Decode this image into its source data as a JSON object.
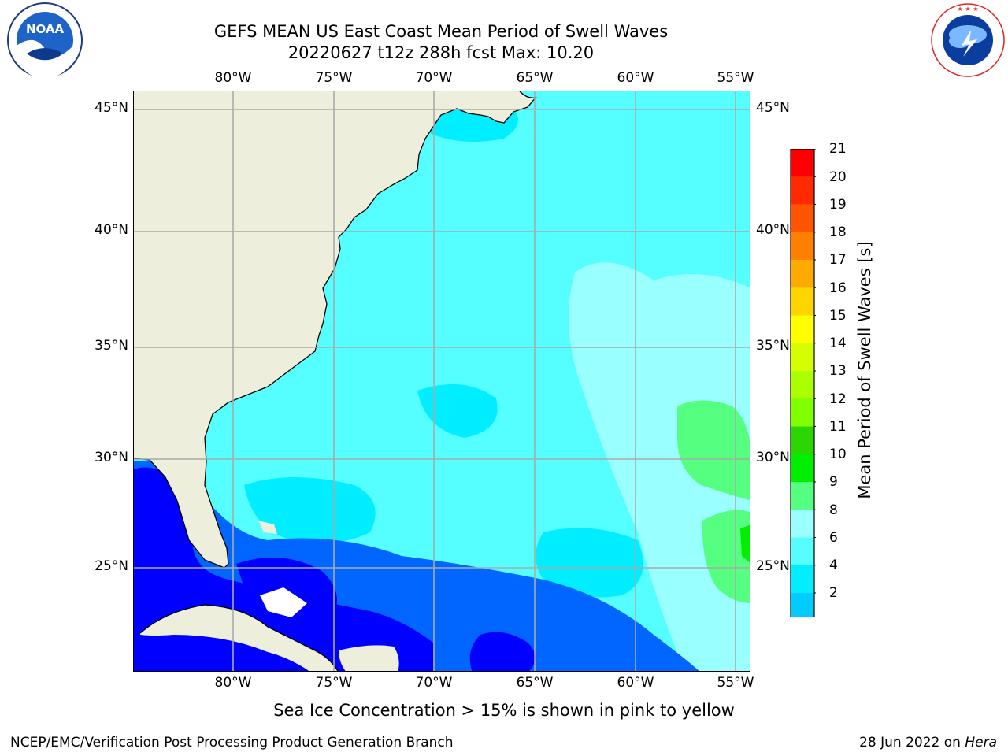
{
  "title_line1": "GEFS MEAN US East Coast Mean Period of Swell Waves",
  "title_line2": "20220627 t12z 288h fcst   Max: 10.20",
  "longitude_labels": [
    "80°W",
    "75°W",
    "70°W",
    "65°W",
    "60°W",
    "55°W"
  ],
  "latitude_labels": [
    "45°N",
    "40°N",
    "35°N",
    "30°N",
    "25°N"
  ],
  "colorbar": {
    "label": "Mean Period of Swell Waves [s]",
    "ticks": [
      "21",
      "20",
      "19",
      "18",
      "17",
      "16",
      "15",
      "14",
      "13",
      "12",
      "11",
      "10",
      "9",
      "8",
      "6",
      "4",
      "2"
    ],
    "colors": [
      "#ff0000",
      "#ff2a00",
      "#ff5500",
      "#ff8000",
      "#ffaa00",
      "#ffd500",
      "#ffff00",
      "#d5ff00",
      "#aaff00",
      "#80ff00",
      "#2ad500",
      "#00ee00",
      "#55ff80",
      "#99ffff",
      "#55ffff",
      "#00eeff",
      "#00ccff",
      "#0066ff"
    ],
    "under_color": "#0000ff"
  },
  "legend_levels": [
    {
      "level": "2-4 s",
      "color": "#0066ff"
    },
    {
      "level": "4-6 s",
      "color": "#00eeff"
    },
    {
      "level": "6-8 s",
      "color": "#55ffff"
    },
    {
      "level": "8-9 s",
      "color": "#99ffff"
    },
    {
      "level": "9-10 s",
      "color": "#55ff80"
    },
    {
      "level": "< 2 s",
      "color": "#0000ff"
    }
  ],
  "map_colors": {
    "land": "#eeeedd",
    "grid": "#aaaaaa",
    "coast": "#000000"
  },
  "footnote": "Sea Ice Concentration > 15% is shown in pink to yellow",
  "credit": "NCEP/EMC/Verification Post Processing Product Generation Branch",
  "date_text": "28 Jun 2022 on",
  "host": "Hera",
  "noaa_logo_text": "NOAA",
  "nws_logo_text": "NATIONAL WEATHER SERVICE"
}
